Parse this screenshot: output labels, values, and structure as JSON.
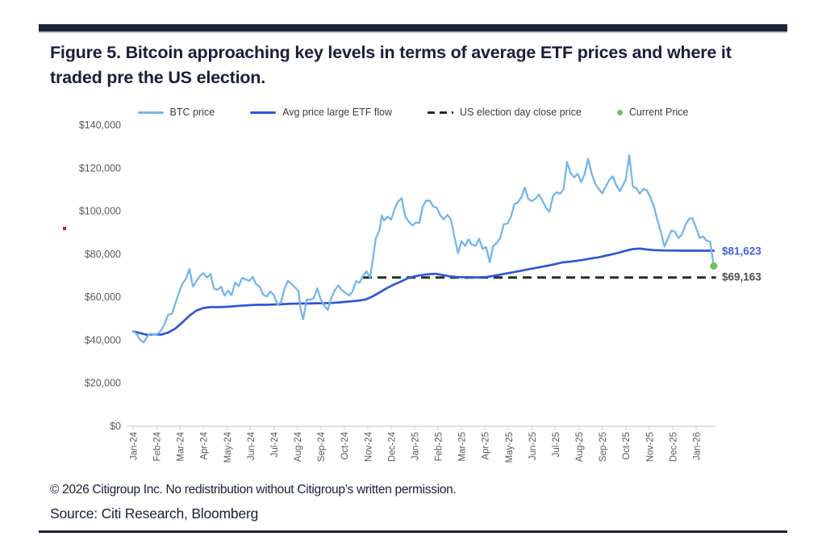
{
  "header": {
    "title": "Figure 5. Bitcoin approaching key levels in terms of average ETF prices and where it traded pre the US election."
  },
  "footer": {
    "copyright": "© 2026 Citigroup Inc. No redistribution without Citigroup’s written permission.",
    "source": "Source: Citi Research, Bloomberg"
  },
  "chart_data": {
    "type": "line",
    "title": "Figure 5. Bitcoin approaching key levels in terms of average ETF prices and where it traded pre the US election.",
    "xlabel": "",
    "ylabel": "",
    "ylim": [
      0,
      140000
    ],
    "grid": false,
    "legend_position": "top",
    "colors": {
      "btc_line": "#73b6ec",
      "avg_line": "#2f56d7",
      "election_dash": "#233023",
      "current_dot": "#70bf63",
      "annotation_blue": "#3f62df",
      "annotation_gray": "#4d4d4d",
      "axis_text": "#5a5a5a",
      "axis_line": "#d6d6d6",
      "navy": "#1b2436"
    },
    "y_ticks": [
      {
        "label": "$0",
        "value": 0
      },
      {
        "label": "$20,000",
        "value": 20000
      },
      {
        "label": "$40,000",
        "value": 40000
      },
      {
        "label": "$60,000",
        "value": 60000
      },
      {
        "label": "$80,000",
        "value": 80000
      },
      {
        "label": "$100,000",
        "value": 100000
      },
      {
        "label": "$120,000",
        "value": 120000
      },
      {
        "label": "$140,000",
        "value": 140000
      }
    ],
    "x_tick_labels": [
      "Jan-24",
      "Feb-24",
      "Mar-24",
      "Apr-24",
      "May-24",
      "Jun-24",
      "Jul-24",
      "Aug-24",
      "Sep-24",
      "Oct-24",
      "Nov-24",
      "Dec-24",
      "Jan-25",
      "Feb-25",
      "Mar-25",
      "Apr-25",
      "May-25",
      "Jun-25",
      "Jul-25",
      "Aug-25",
      "Sep-25",
      "Oct-25",
      "Nov-25",
      "Dec-25",
      "Jan-26"
    ],
    "series": [
      {
        "name": "BTC price",
        "color": "#73b6ec",
        "points": [
          [
            0.0,
            44200
          ],
          [
            0.15,
            42900
          ],
          [
            0.3,
            40200
          ],
          [
            0.45,
            38900
          ],
          [
            0.6,
            41700
          ],
          [
            0.75,
            43100
          ],
          [
            0.9,
            42500
          ],
          [
            1.05,
            43000
          ],
          [
            1.2,
            44600
          ],
          [
            1.35,
            47800
          ],
          [
            1.5,
            51900
          ],
          [
            1.65,
            52200
          ],
          [
            1.8,
            57000
          ],
          [
            1.95,
            62000
          ],
          [
            2.1,
            66300
          ],
          [
            2.25,
            68500
          ],
          [
            2.4,
            73100
          ],
          [
            2.55,
            64900
          ],
          [
            2.7,
            67500
          ],
          [
            2.85,
            69900
          ],
          [
            3.0,
            71200
          ],
          [
            3.15,
            69100
          ],
          [
            3.3,
            70800
          ],
          [
            3.45,
            64000
          ],
          [
            3.6,
            63500
          ],
          [
            3.75,
            64900
          ],
          [
            3.9,
            60700
          ],
          [
            4.05,
            63100
          ],
          [
            4.2,
            61000
          ],
          [
            4.35,
            66900
          ],
          [
            4.5,
            65200
          ],
          [
            4.65,
            69000
          ],
          [
            4.8,
            68300
          ],
          [
            4.95,
            67600
          ],
          [
            5.1,
            69500
          ],
          [
            5.25,
            66000
          ],
          [
            5.4,
            64900
          ],
          [
            5.55,
            61100
          ],
          [
            5.7,
            60300
          ],
          [
            5.85,
            62700
          ],
          [
            6.0,
            60900
          ],
          [
            6.15,
            56700
          ],
          [
            6.3,
            57500
          ],
          [
            6.45,
            63800
          ],
          [
            6.6,
            67600
          ],
          [
            6.75,
            66200
          ],
          [
            6.9,
            64600
          ],
          [
            7.05,
            62800
          ],
          [
            7.15,
            53900
          ],
          [
            7.25,
            49800
          ],
          [
            7.4,
            59000
          ],
          [
            7.55,
            58800
          ],
          [
            7.7,
            59500
          ],
          [
            7.85,
            64100
          ],
          [
            8.0,
            59000
          ],
          [
            8.15,
            56200
          ],
          [
            8.3,
            54100
          ],
          [
            8.45,
            59800
          ],
          [
            8.6,
            63200
          ],
          [
            8.75,
            65500
          ],
          [
            8.9,
            63300
          ],
          [
            9.05,
            62100
          ],
          [
            9.2,
            60800
          ],
          [
            9.35,
            62500
          ],
          [
            9.5,
            67400
          ],
          [
            9.65,
            66700
          ],
          [
            9.8,
            69900
          ],
          [
            9.95,
            72100
          ],
          [
            10.1,
            69163
          ],
          [
            10.2,
            75900
          ],
          [
            10.35,
            87500
          ],
          [
            10.5,
            91000
          ],
          [
            10.6,
            98000
          ],
          [
            10.7,
            95600
          ],
          [
            10.85,
            97500
          ],
          [
            11.0,
            96000
          ],
          [
            11.15,
            101100
          ],
          [
            11.3,
            104500
          ],
          [
            11.45,
            106100
          ],
          [
            11.6,
            97500
          ],
          [
            11.75,
            95200
          ],
          [
            11.9,
            93400
          ],
          [
            12.05,
            94700
          ],
          [
            12.2,
            94500
          ],
          [
            12.35,
            102300
          ],
          [
            12.5,
            105000
          ],
          [
            12.65,
            104800
          ],
          [
            12.8,
            102100
          ],
          [
            12.95,
            101600
          ],
          [
            13.1,
            97900
          ],
          [
            13.25,
            96200
          ],
          [
            13.4,
            98300
          ],
          [
            13.55,
            96100
          ],
          [
            13.7,
            88000
          ],
          [
            13.85,
            80500
          ],
          [
            14.0,
            86100
          ],
          [
            14.15,
            83800
          ],
          [
            14.3,
            86900
          ],
          [
            14.45,
            84400
          ],
          [
            14.6,
            83900
          ],
          [
            14.75,
            87200
          ],
          [
            14.9,
            82500
          ],
          [
            15.05,
            83300
          ],
          [
            15.2,
            76300
          ],
          [
            15.35,
            83800
          ],
          [
            15.5,
            85200
          ],
          [
            15.65,
            87500
          ],
          [
            15.8,
            93900
          ],
          [
            15.95,
            94200
          ],
          [
            16.1,
            97100
          ],
          [
            16.25,
            103200
          ],
          [
            16.4,
            104100
          ],
          [
            16.55,
            106500
          ],
          [
            16.7,
            111000
          ],
          [
            16.85,
            105600
          ],
          [
            17.0,
            104700
          ],
          [
            17.15,
            105800
          ],
          [
            17.3,
            107800
          ],
          [
            17.45,
            104900
          ],
          [
            17.6,
            101500
          ],
          [
            17.75,
            99800
          ],
          [
            17.9,
            107200
          ],
          [
            18.05,
            108800
          ],
          [
            18.2,
            108100
          ],
          [
            18.35,
            110300
          ],
          [
            18.5,
            122900
          ],
          [
            18.65,
            117600
          ],
          [
            18.8,
            115700
          ],
          [
            18.95,
            117400
          ],
          [
            19.1,
            113500
          ],
          [
            19.25,
            117300
          ],
          [
            19.4,
            124300
          ],
          [
            19.55,
            117400
          ],
          [
            19.7,
            112800
          ],
          [
            19.85,
            110300
          ],
          [
            20.0,
            108300
          ],
          [
            20.15,
            111500
          ],
          [
            20.3,
            114600
          ],
          [
            20.45,
            116200
          ],
          [
            20.6,
            112000
          ],
          [
            20.75,
            109300
          ],
          [
            21.0,
            114500
          ],
          [
            21.15,
            126100
          ],
          [
            21.3,
            111600
          ],
          [
            21.45,
            110700
          ],
          [
            21.6,
            108100
          ],
          [
            21.75,
            110400
          ],
          [
            21.9,
            109700
          ],
          [
            22.05,
            106500
          ],
          [
            22.2,
            102300
          ],
          [
            22.35,
            95800
          ],
          [
            22.5,
            90200
          ],
          [
            22.65,
            83500
          ],
          [
            22.8,
            87300
          ],
          [
            22.95,
            91000
          ],
          [
            23.1,
            90400
          ],
          [
            23.25,
            87500
          ],
          [
            23.4,
            89200
          ],
          [
            23.55,
            93800
          ],
          [
            23.7,
            96500
          ],
          [
            23.85,
            96700
          ],
          [
            24.0,
            92200
          ],
          [
            24.15,
            87600
          ],
          [
            24.3,
            88200
          ],
          [
            24.45,
            86200
          ],
          [
            24.6,
            85800
          ],
          [
            24.75,
            74500
          ]
        ]
      },
      {
        "name": "Avg price large ETF flow",
        "color": "#2f56d7",
        "points": [
          [
            0.0,
            44100
          ],
          [
            0.3,
            43300
          ],
          [
            0.6,
            42500
          ],
          [
            0.9,
            42700
          ],
          [
            1.2,
            42600
          ],
          [
            1.5,
            43600
          ],
          [
            1.8,
            45400
          ],
          [
            2.1,
            48300
          ],
          [
            2.4,
            51400
          ],
          [
            2.7,
            53800
          ],
          [
            3.0,
            55000
          ],
          [
            3.3,
            55400
          ],
          [
            3.6,
            55400
          ],
          [
            3.9,
            55500
          ],
          [
            4.2,
            55700
          ],
          [
            4.5,
            56000
          ],
          [
            4.8,
            56200
          ],
          [
            5.1,
            56400
          ],
          [
            5.4,
            56500
          ],
          [
            5.7,
            56500
          ],
          [
            6.0,
            56600
          ],
          [
            6.3,
            56700
          ],
          [
            6.6,
            56900
          ],
          [
            6.9,
            57000
          ],
          [
            7.2,
            57100
          ],
          [
            7.5,
            57100
          ],
          [
            7.8,
            57200
          ],
          [
            8.1,
            57200
          ],
          [
            8.4,
            57300
          ],
          [
            8.7,
            57500
          ],
          [
            9.0,
            57800
          ],
          [
            9.3,
            58100
          ],
          [
            9.6,
            58400
          ],
          [
            9.9,
            58900
          ],
          [
            10.2,
            60300
          ],
          [
            10.5,
            62200
          ],
          [
            10.8,
            64100
          ],
          [
            11.1,
            65800
          ],
          [
            11.4,
            67200
          ],
          [
            11.7,
            68800
          ],
          [
            12.0,
            69700
          ],
          [
            12.3,
            70300
          ],
          [
            12.6,
            70700
          ],
          [
            12.9,
            70900
          ],
          [
            13.2,
            70300
          ],
          [
            13.5,
            69700
          ],
          [
            13.8,
            69400
          ],
          [
            14.1,
            69300
          ],
          [
            14.4,
            69200
          ],
          [
            14.7,
            69200
          ],
          [
            15.0,
            69300
          ],
          [
            15.3,
            69800
          ],
          [
            15.6,
            70400
          ],
          [
            15.9,
            71000
          ],
          [
            16.2,
            71600
          ],
          [
            16.5,
            72200
          ],
          [
            16.8,
            72900
          ],
          [
            17.1,
            73500
          ],
          [
            17.4,
            74100
          ],
          [
            17.7,
            74700
          ],
          [
            18.0,
            75400
          ],
          [
            18.3,
            76200
          ],
          [
            18.6,
            76500
          ],
          [
            18.9,
            76900
          ],
          [
            19.2,
            77400
          ],
          [
            19.5,
            78000
          ],
          [
            19.8,
            78500
          ],
          [
            20.1,
            79200
          ],
          [
            20.4,
            79900
          ],
          [
            20.7,
            80700
          ],
          [
            21.0,
            81600
          ],
          [
            21.3,
            82400
          ],
          [
            21.6,
            82600
          ],
          [
            21.9,
            82200
          ],
          [
            22.2,
            81900
          ],
          [
            22.5,
            81800
          ],
          [
            22.8,
            81700
          ],
          [
            23.1,
            81700
          ],
          [
            23.4,
            81650
          ],
          [
            23.7,
            81640
          ],
          [
            24.0,
            81630
          ],
          [
            24.4,
            81625
          ],
          [
            24.75,
            81623
          ]
        ]
      },
      {
        "name": "US election day close price",
        "color": "#233023",
        "style": "dashed",
        "value": 69163,
        "t_start": 9.8,
        "t_end": 24.85
      },
      {
        "name": "Current Price",
        "color": "#70bf63",
        "type": "marker",
        "t": 24.75,
        "value": 74500
      }
    ],
    "annotations": [
      {
        "text": "$81,623",
        "value": 81623,
        "color": "#3f62df"
      },
      {
        "text": "$69,163",
        "value": 69163,
        "color": "#4d4d4d"
      }
    ]
  }
}
